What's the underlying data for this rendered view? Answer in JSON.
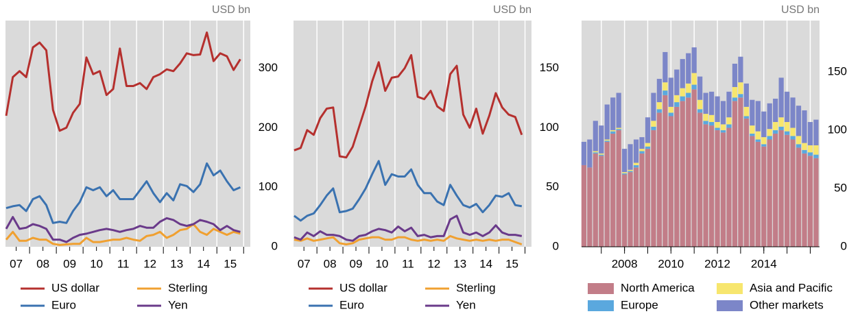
{
  "chart_data": [
    {
      "type": "line",
      "ylabel": "USD bn",
      "x": [
        2007.125,
        2007.375,
        2007.625,
        2007.875,
        2008.125,
        2008.375,
        2008.625,
        2008.875,
        2009.125,
        2009.375,
        2009.625,
        2009.875,
        2010.125,
        2010.375,
        2010.625,
        2010.875,
        2011.125,
        2011.375,
        2011.625,
        2011.875,
        2012.125,
        2012.375,
        2012.625,
        2012.875,
        2013.125,
        2013.375,
        2013.625,
        2013.875,
        2014.125,
        2014.375,
        2014.625,
        2014.875,
        2015.125,
        2015.375,
        2015.625,
        2015.875
      ],
      "xlim": [
        2007.1,
        2016.25
      ],
      "xticks": [
        {
          "value": 2007.5,
          "label": "07"
        },
        {
          "value": 2008.5,
          "label": "08"
        },
        {
          "value": 2009.5,
          "label": "09"
        },
        {
          "value": 2010.5,
          "label": "10"
        },
        {
          "value": 2011.5,
          "label": "11"
        },
        {
          "value": 2012.5,
          "label": "12"
        },
        {
          "value": 2013.5,
          "label": "13"
        },
        {
          "value": 2014.5,
          "label": "14"
        },
        {
          "value": 2015.5,
          "label": "15"
        }
      ],
      "ylim": [
        0,
        380
      ],
      "yticks": [
        0,
        100,
        200,
        300
      ],
      "legend": "bottom",
      "series": [
        {
          "name": "US dollar",
          "color": "#b5302e",
          "values": [
            220,
            285,
            295,
            285,
            335,
            343,
            330,
            230,
            195,
            200,
            225,
            240,
            318,
            290,
            295,
            255,
            265,
            333,
            270,
            270,
            275,
            265,
            285,
            290,
            298,
            295,
            308,
            325,
            322,
            323,
            360,
            312,
            325,
            320,
            297,
            315
          ]
        },
        {
          "name": "Euro",
          "color": "#3a72b0",
          "values": [
            65,
            68,
            70,
            60,
            80,
            85,
            70,
            40,
            42,
            40,
            60,
            75,
            100,
            95,
            100,
            85,
            95,
            80,
            80,
            80,
            95,
            110,
            90,
            75,
            90,
            78,
            105,
            102,
            92,
            105,
            140,
            120,
            128,
            110,
            95,
            100
          ]
        },
        {
          "name": "Sterling",
          "color": "#f0a030",
          "values": [
            12,
            25,
            10,
            10,
            15,
            12,
            12,
            5,
            3,
            4,
            5,
            5,
            15,
            8,
            8,
            10,
            12,
            12,
            15,
            12,
            10,
            18,
            20,
            25,
            15,
            20,
            28,
            30,
            38,
            25,
            20,
            30,
            25,
            20,
            25,
            22
          ]
        },
        {
          "name": "Yen",
          "color": "#6a3a8a",
          "values": [
            30,
            50,
            30,
            32,
            38,
            35,
            30,
            12,
            12,
            8,
            15,
            20,
            22,
            25,
            28,
            30,
            28,
            25,
            28,
            30,
            35,
            32,
            32,
            42,
            48,
            45,
            38,
            35,
            38,
            45,
            42,
            38,
            28,
            35,
            28,
            25
          ]
        }
      ]
    },
    {
      "type": "line",
      "ylabel": "USD bn",
      "x": [
        2007.125,
        2007.375,
        2007.625,
        2007.875,
        2008.125,
        2008.375,
        2008.625,
        2008.875,
        2009.125,
        2009.375,
        2009.625,
        2009.875,
        2010.125,
        2010.375,
        2010.625,
        2010.875,
        2011.125,
        2011.375,
        2011.625,
        2011.875,
        2012.125,
        2012.375,
        2012.625,
        2012.875,
        2013.125,
        2013.375,
        2013.625,
        2013.875,
        2014.125,
        2014.375,
        2014.625,
        2014.875,
        2015.125,
        2015.375,
        2015.625,
        2015.875
      ],
      "xlim": [
        2007.1,
        2016.25
      ],
      "xticks": [
        {
          "value": 2007.5,
          "label": "07"
        },
        {
          "value": 2008.5,
          "label": "08"
        },
        {
          "value": 2009.5,
          "label": "09"
        },
        {
          "value": 2010.5,
          "label": "10"
        },
        {
          "value": 2011.5,
          "label": "11"
        },
        {
          "value": 2012.5,
          "label": "12"
        },
        {
          "value": 2013.5,
          "label": "13"
        },
        {
          "value": 2014.5,
          "label": "14"
        },
        {
          "value": 2015.5,
          "label": "15"
        }
      ],
      "ylim": [
        0,
        190
      ],
      "yticks": [
        0,
        50,
        100,
        150
      ],
      "legend": "bottom",
      "series": [
        {
          "name": "US dollar",
          "color": "#b5302e",
          "values": [
            81,
            83,
            98,
            94,
            108,
            116,
            117,
            76,
            75,
            84,
            101,
            118,
            139,
            155,
            131,
            142,
            143,
            150,
            161,
            126,
            124,
            131,
            118,
            114,
            145,
            152,
            111,
            100,
            116,
            95,
            110,
            129,
            117,
            111,
            109,
            94
          ]
        },
        {
          "name": "Euro",
          "color": "#3a72b0",
          "values": [
            26,
            22,
            26,
            28,
            35,
            43,
            49,
            29,
            30,
            32,
            40,
            49,
            61,
            72,
            52,
            61,
            59,
            59,
            65,
            52,
            45,
            45,
            38,
            35,
            52,
            43,
            35,
            33,
            36,
            29,
            35,
            43,
            42,
            45,
            35,
            34
          ]
        },
        {
          "name": "Sterling",
          "color": "#f0a030",
          "values": [
            6,
            5,
            7,
            5,
            6,
            7,
            8,
            3,
            2,
            3,
            6,
            7,
            8,
            8,
            6,
            6,
            8,
            8,
            6,
            5,
            6,
            5,
            6,
            5,
            9,
            7,
            6,
            5,
            6,
            5,
            6,
            5,
            6,
            6,
            4,
            2
          ]
        },
        {
          "name": "Yen",
          "color": "#6a3a8a",
          "values": [
            8,
            6,
            12,
            9,
            13,
            10,
            10,
            9,
            6,
            5,
            9,
            10,
            13,
            15,
            14,
            12,
            17,
            13,
            16,
            9,
            10,
            8,
            9,
            9,
            23,
            26,
            12,
            10,
            12,
            9,
            12,
            18,
            12,
            10,
            10,
            9
          ]
        }
      ]
    },
    {
      "type": "bar",
      "stacked": true,
      "ylabel": "USD bn",
      "x": [
        2006.25,
        2006.5,
        2006.75,
        2007.0,
        2007.25,
        2007.5,
        2007.75,
        2008.0,
        2008.25,
        2008.5,
        2008.75,
        2009.0,
        2009.25,
        2009.5,
        2009.75,
        2010.0,
        2010.25,
        2010.5,
        2010.75,
        2011.0,
        2011.25,
        2011.5,
        2011.75,
        2012.0,
        2012.25,
        2012.5,
        2012.75,
        2013.0,
        2013.25,
        2013.5,
        2013.75,
        2014.0,
        2014.25,
        2014.5,
        2014.75,
        2015.0,
        2015.25,
        2015.5,
        2015.75,
        2016.0,
        2016.25
      ],
      "xlim": [
        2006.15,
        2016.4
      ],
      "xticks": [
        {
          "value": 2008,
          "label": "2008"
        },
        {
          "value": 2010,
          "label": "2010"
        },
        {
          "value": 2012,
          "label": "2012"
        },
        {
          "value": 2014,
          "label": "2014"
        }
      ],
      "ylim": [
        0,
        194
      ],
      "yticks": [
        0,
        50,
        100,
        150
      ],
      "legend": "bottom",
      "series": [
        {
          "name": "North America",
          "color": "#c27d88",
          "values": [
            70,
            68,
            80,
            78,
            90,
            97,
            100,
            62,
            64,
            68,
            80,
            84,
            100,
            115,
            130,
            112,
            120,
            125,
            128,
            135,
            115,
            105,
            104,
            100,
            98,
            102,
            125,
            128,
            110,
            95,
            90,
            86,
            92,
            97,
            100,
            96,
            92,
            85,
            80,
            78,
            76
          ]
        },
        {
          "name": "Europe",
          "color": "#5aa8de",
          "values": [
            0,
            0,
            1,
            1,
            1,
            2,
            1,
            1,
            1,
            2,
            2,
            2,
            3,
            3,
            4,
            3,
            4,
            4,
            4,
            4,
            3,
            3,
            3,
            2,
            2,
            3,
            3,
            3,
            2,
            2,
            2,
            2,
            3,
            3,
            3,
            3,
            3,
            3,
            3,
            3,
            3
          ]
        },
        {
          "name": "Asia and Pacific",
          "color": "#f7e66e",
          "values": [
            0,
            0,
            1,
            1,
            1,
            1,
            1,
            1,
            1,
            2,
            2,
            3,
            5,
            6,
            7,
            5,
            6,
            7,
            8,
            10,
            8,
            6,
            6,
            5,
            5,
            6,
            9,
            10,
            8,
            7,
            7,
            6,
            6,
            7,
            8,
            8,
            7,
            7,
            6,
            6,
            8
          ]
        },
        {
          "name": "Other markets",
          "color": "#7c86c8",
          "values": [
            20,
            24,
            26,
            24,
            30,
            28,
            30,
            20,
            22,
            20,
            10,
            22,
            24,
            20,
            26,
            25,
            22,
            25,
            26,
            22,
            20,
            18,
            20,
            22,
            20,
            22,
            20,
            22,
            20,
            22,
            26,
            22,
            22,
            20,
            34,
            26,
            26,
            26,
            28,
            20,
            22
          ]
        }
      ]
    }
  ]
}
